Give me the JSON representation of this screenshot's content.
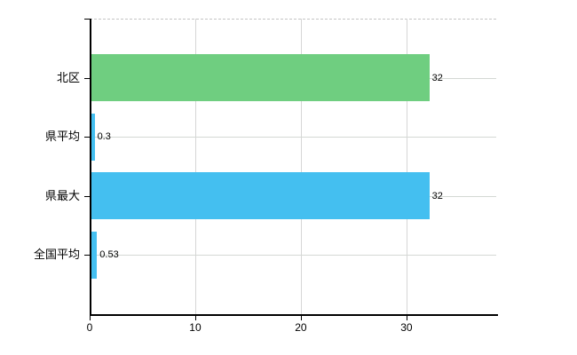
{
  "chart_data": {
    "type": "bar",
    "orientation": "horizontal",
    "title": "",
    "xlabel": "",
    "ylabel": "",
    "categories": [
      "北区",
      "県平均",
      "県最大",
      "全国平均"
    ],
    "values": [
      32,
      0.3,
      32,
      0.53
    ],
    "value_labels": [
      "32",
      "0.3",
      "32",
      "0.53"
    ],
    "series": [
      {
        "name": "",
        "values": [
          32,
          0.3,
          32,
          0.53
        ]
      }
    ],
    "bar_colors": [
      "#6FCE80",
      "#44BFF0",
      "#44BFF0",
      "#44BFF0"
    ],
    "x_ticks": [
      0,
      10,
      20,
      30
    ],
    "x_tick_labels": [
      "0",
      "10",
      "20",
      "30"
    ],
    "xlim": [
      0,
      38.5
    ],
    "grid": true,
    "legend": "none",
    "colors": {
      "axis": "#000000",
      "gridline": "#d6d6d6",
      "h_gridline": "#d4d8d4",
      "border_dashed": "#c4c4c4",
      "background": "#ffffff",
      "text": "#000000"
    }
  }
}
